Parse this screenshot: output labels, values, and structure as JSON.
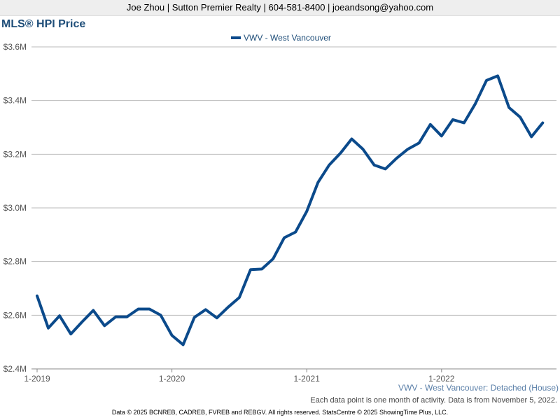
{
  "header": {
    "contact": "Joe Zhou | Sutton Premier Realty | 604-581-8400 | joeandsong@yahoo.com"
  },
  "chart_data": {
    "type": "line",
    "title": "MLS® HPI Price",
    "subtitle": "VWV - West Vancouver: Detached (House)",
    "xlabel": "",
    "ylabel": "",
    "legend_position": "top-center",
    "grid": true,
    "ylim": [
      2400000,
      3600000
    ],
    "y_ticks": [
      2400000,
      2600000,
      2800000,
      3000000,
      3200000,
      3400000,
      3600000
    ],
    "y_tick_labels": [
      "$2.4M",
      "$2.6M",
      "$2.8M",
      "$3.0M",
      "$3.2M",
      "$3.4M",
      "$3.6M"
    ],
    "x_tick_labels": [
      "1-2019",
      "1-2020",
      "1-2021",
      "1-2022"
    ],
    "x": [
      "2019-01",
      "2019-02",
      "2019-03",
      "2019-04",
      "2019-05",
      "2019-06",
      "2019-07",
      "2019-08",
      "2019-09",
      "2019-10",
      "2019-11",
      "2019-12",
      "2020-01",
      "2020-02",
      "2020-03",
      "2020-04",
      "2020-05",
      "2020-06",
      "2020-07",
      "2020-08",
      "2020-09",
      "2020-10",
      "2020-11",
      "2020-12",
      "2021-01",
      "2021-02",
      "2021-03",
      "2021-04",
      "2021-05",
      "2021-06",
      "2021-07",
      "2021-08",
      "2021-09",
      "2021-10",
      "2021-11",
      "2021-12",
      "2022-01",
      "2022-02",
      "2022-03",
      "2022-04",
      "2022-05",
      "2022-06",
      "2022-07",
      "2022-08",
      "2022-09",
      "2022-10"
    ],
    "series": [
      {
        "name": "VWV - West Vancouver",
        "color": "#0b4a8b",
        "values": [
          2672000,
          2552000,
          2598000,
          2530000,
          2575000,
          2618000,
          2561000,
          2594000,
          2594000,
          2623000,
          2623000,
          2600000,
          2525000,
          2490000,
          2592000,
          2621000,
          2590000,
          2630000,
          2666000,
          2770000,
          2772000,
          2810000,
          2889000,
          2910000,
          2987000,
          3095000,
          3160000,
          3204000,
          3257000,
          3219000,
          3160000,
          3145000,
          3185000,
          3219000,
          3242000,
          3311000,
          3268000,
          3329000,
          3317000,
          3388000,
          3475000,
          3492000,
          3374000,
          3338000,
          3265000,
          3317000
        ]
      }
    ]
  },
  "footer": {
    "note": "Each data point is one month of activity. Data is from November 5, 2022.",
    "copyright": "Data © 2025 BCNREB, CADREB, FVREB and REBGV. All rights reserved. StatsCentre © 2025 ShowingTime Plus, LLC."
  }
}
